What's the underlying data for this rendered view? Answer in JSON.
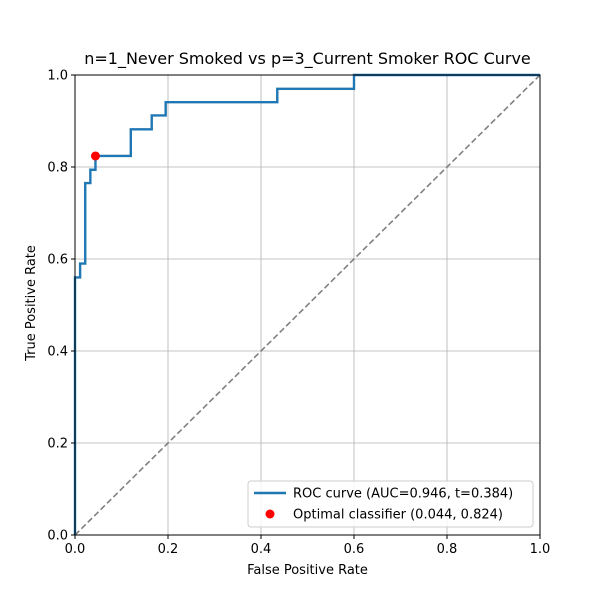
{
  "chart_data": {
    "type": "line",
    "title": "n=1_Never Smoked vs p=3_Current Smoker ROC Curve",
    "xlabel": "False Positive Rate",
    "ylabel": "True Positive Rate",
    "xlim": [
      0.0,
      1.0
    ],
    "ylim": [
      0.0,
      1.0
    ],
    "xticks": [
      "0.0",
      "0.2",
      "0.4",
      "0.6",
      "0.8",
      "1.0"
    ],
    "yticks": [
      "0.0",
      "0.2",
      "0.4",
      "0.6",
      "0.8",
      "1.0"
    ],
    "grid": true,
    "legend_position": "lower-right",
    "series": [
      {
        "name": "ROC curve (AUC=0.946, t=0.384)",
        "style": "step",
        "color": "#1f77b4",
        "x": [
          0.0,
          0.0,
          0.011,
          0.011,
          0.022,
          0.022,
          0.033,
          0.033,
          0.044,
          0.044,
          0.12,
          0.12,
          0.165,
          0.165,
          0.195,
          0.195,
          0.435,
          0.435,
          0.6,
          0.6,
          1.0
        ],
        "y": [
          0.0,
          0.56,
          0.56,
          0.59,
          0.59,
          0.765,
          0.765,
          0.794,
          0.794,
          0.824,
          0.824,
          0.882,
          0.882,
          0.912,
          0.912,
          0.941,
          0.941,
          0.97,
          0.97,
          1.0,
          1.0
        ]
      },
      {
        "name": "",
        "style": "dashed",
        "color": "#808080",
        "x": [
          0.0,
          1.0
        ],
        "y": [
          0.0,
          1.0
        ]
      }
    ],
    "points": [
      {
        "name": "Optimal classifier (0.044, 0.824)",
        "color": "#ff0000",
        "x": 0.044,
        "y": 0.824
      }
    ]
  }
}
